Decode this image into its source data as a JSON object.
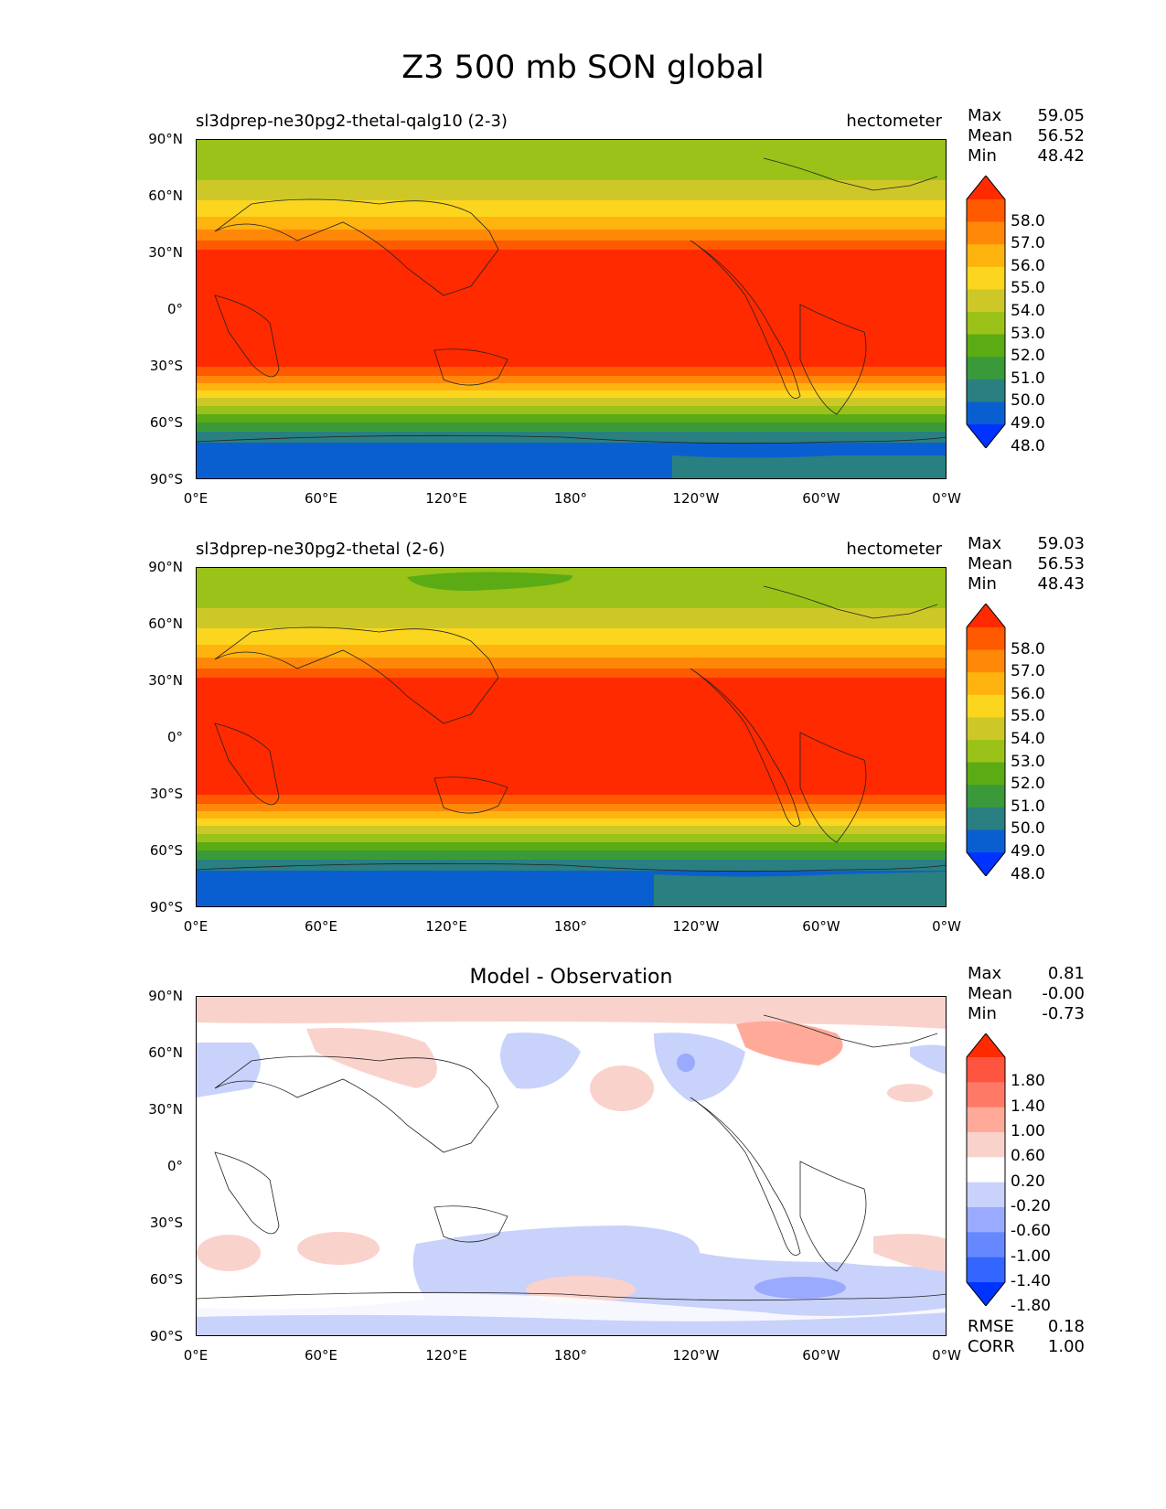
{
  "title": "Z3 500 mb SON global",
  "colors": {
    "z3_levels": [
      "#0033ff",
      "#0a5fd0",
      "#2a7f80",
      "#3a9a3a",
      "#5aab14",
      "#9ac218",
      "#cdc828",
      "#fbd51e",
      "#ffb30e",
      "#ff8808",
      "#ff5a00",
      "#ff2a00"
    ],
    "diff_levels": [
      "#0033ff",
      "#3366ff",
      "#6688ff",
      "#99aaff",
      "#c8d2fa",
      "#ffffff",
      "#fad2cc",
      "#ffaa99",
      "#ff7a66",
      "#ff5540",
      "#ff2a00"
    ]
  },
  "lat_ticks": [
    "90°N",
    "60°N",
    "30°N",
    "0°",
    "30°S",
    "60°S",
    "90°S"
  ],
  "lon_ticks": [
    "0°E",
    "60°E",
    "120°E",
    "180°",
    "120°W",
    "60°W",
    "0°W"
  ],
  "panels": [
    {
      "left_title": "sl3dprep-ne30pg2-thetal-qalg10 (2-3)",
      "right_title": "hectometer",
      "stats": {
        "max_label": "Max",
        "max": "59.05",
        "mean_label": "Mean",
        "mean": "56.52",
        "min_label": "Min",
        "min": "48.42"
      },
      "colorbar_ticks": [
        "58.0",
        "57.0",
        "56.0",
        "55.0",
        "54.0",
        "53.0",
        "52.0",
        "51.0",
        "50.0",
        "49.0",
        "48.0"
      ]
    },
    {
      "left_title": "sl3dprep-ne30pg2-thetal (2-6)",
      "right_title": "hectometer",
      "stats": {
        "max_label": "Max",
        "max": "59.03",
        "mean_label": "Mean",
        "mean": "56.53",
        "min_label": "Min",
        "min": "48.43"
      },
      "colorbar_ticks": [
        "58.0",
        "57.0",
        "56.0",
        "55.0",
        "54.0",
        "53.0",
        "52.0",
        "51.0",
        "50.0",
        "49.0",
        "48.0"
      ]
    },
    {
      "center_title": "Model - Observation",
      "stats": {
        "max_label": "Max",
        "max": "0.81",
        "mean_label": "Mean",
        "mean": "-0.00",
        "min_label": "Min",
        "min": "-0.73"
      },
      "colorbar_ticks": [
        "1.80",
        "1.40",
        "1.00",
        "0.60",
        "0.20",
        "-0.20",
        "-0.60",
        "-1.00",
        "-1.40",
        "-1.80"
      ],
      "rmse_label": "RMSE",
      "rmse": "0.18",
      "corr_label": "CORR",
      "corr": "1.00"
    }
  ]
}
